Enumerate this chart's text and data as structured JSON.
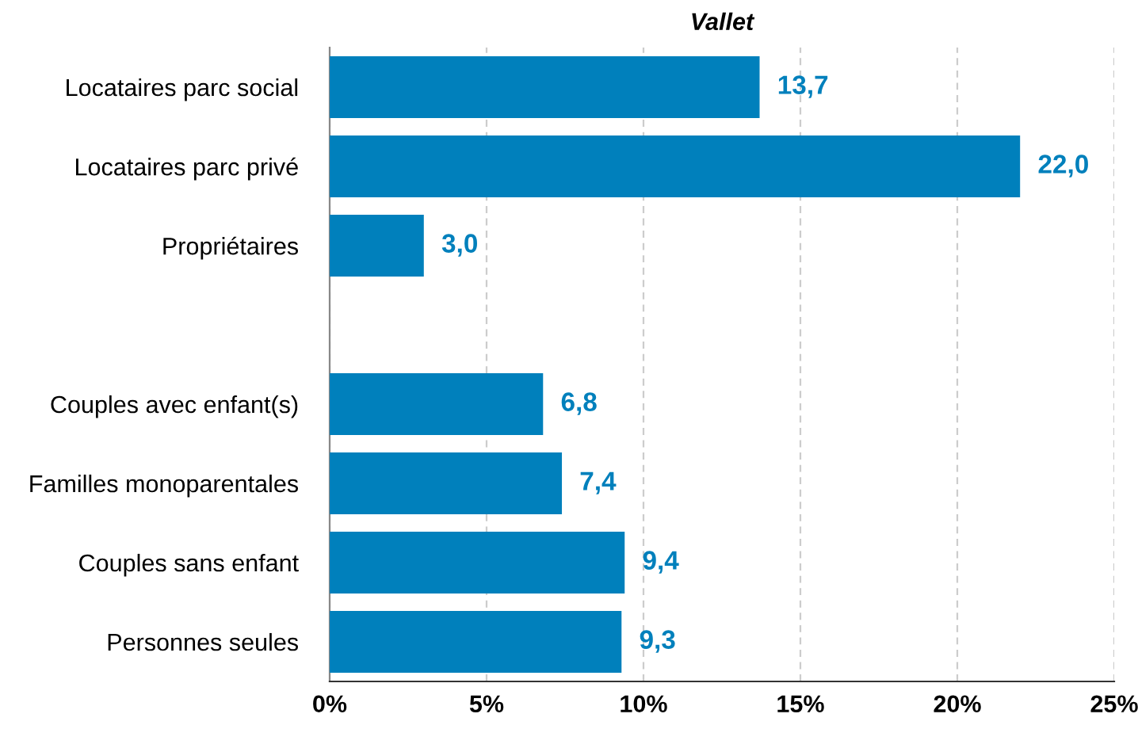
{
  "chart_data": {
    "type": "bar",
    "orientation": "horizontal",
    "title": "Vallet",
    "categories": [
      "Locataires parc social",
      "Locataires parc privé",
      "Propriétaires",
      null,
      "Couples avec enfant(s)",
      "Familles monoparentales",
      "Couples sans enfant",
      "Personnes seules"
    ],
    "values": [
      13.7,
      22.0,
      3.0,
      null,
      6.8,
      7.4,
      9.4,
      9.3
    ],
    "value_labels": [
      "13,7",
      "22,0",
      "3,0",
      null,
      "6,8",
      "7,4",
      "9,4",
      "9,3"
    ],
    "color": "#0080bc",
    "xlim": [
      0,
      25
    ],
    "xticks": [
      {
        "value": 0,
        "label": "0%"
      },
      {
        "value": 5,
        "label": "5%"
      },
      {
        "value": 10,
        "label": "10%"
      },
      {
        "value": 15,
        "label": "15%"
      },
      {
        "value": 20,
        "label": "20%"
      },
      {
        "value": 25,
        "label": "25%"
      }
    ],
    "grid": "x",
    "legend": false
  }
}
